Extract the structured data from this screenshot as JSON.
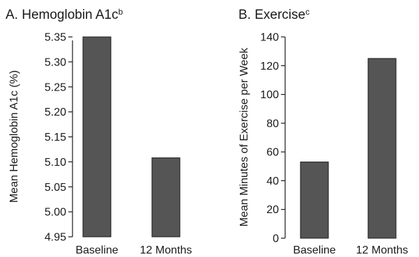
{
  "chart_data": [
    {
      "type": "bar",
      "title": "A. Hemoglobin A1c",
      "title_superscript": "b",
      "ylabel": "Mean Hemoglobin A1c (%)",
      "xlabel": "",
      "categories": [
        "Baseline",
        "12 Months"
      ],
      "values": [
        5.35,
        5.108
      ],
      "ylim": [
        4.95,
        5.35
      ],
      "yticks": [
        "5.35",
        "5.30",
        "5.25",
        "5.20",
        "5.15",
        "5.10",
        "5.05",
        "5.00",
        "4.95"
      ],
      "ytick_values": [
        5.35,
        5.3,
        5.25,
        5.2,
        5.15,
        5.1,
        5.05,
        5.0,
        4.95
      ],
      "grid": false,
      "bar_color": "#555555"
    },
    {
      "type": "bar",
      "title": "B. Exercise",
      "title_superscript": "c",
      "ylabel": "Mean Minutes of Exercise per Week",
      "xlabel": "",
      "categories": [
        "Baseline",
        "12 Months"
      ],
      "values": [
        53,
        125
      ],
      "ylim": [
        0,
        140
      ],
      "yticks": [
        "140",
        "120",
        "100",
        "80",
        "60",
        "40",
        "20",
        "0"
      ],
      "ytick_values": [
        140,
        120,
        100,
        80,
        60,
        40,
        20,
        0
      ],
      "grid": false,
      "bar_color": "#555555"
    }
  ]
}
